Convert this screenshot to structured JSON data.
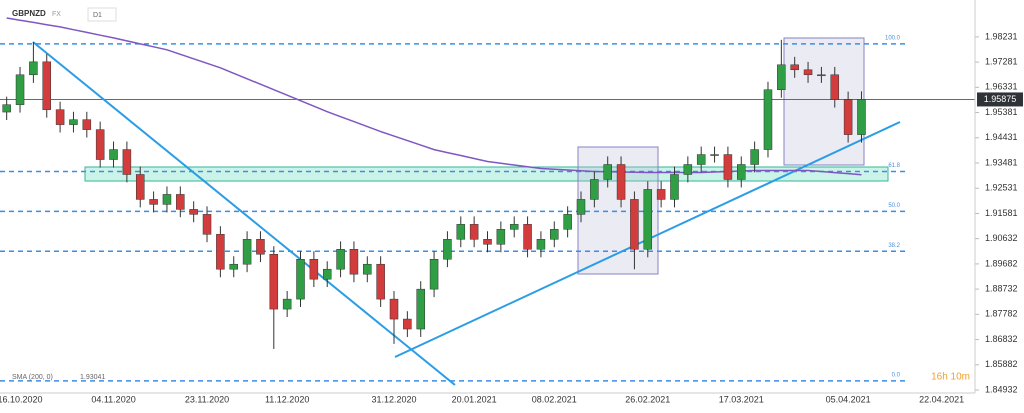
{
  "header": {
    "symbol": "GBPNZD",
    "market": "FX",
    "interval": "D1"
  },
  "chart_data": {
    "type": "candlestick",
    "categories": [
      null,
      "16.10.2020",
      null,
      null,
      null,
      null,
      null,
      null,
      "04.11.2020",
      null,
      null,
      null,
      null,
      null,
      null,
      "23.11.2020",
      null,
      null,
      null,
      null,
      null,
      "11.12.2020",
      null,
      null,
      null,
      null,
      null,
      null,
      null,
      "31.12.2020",
      null,
      null,
      null,
      null,
      null,
      "20.01.2021",
      null,
      null,
      null,
      null,
      null,
      "08.02.2021",
      null,
      null,
      null,
      null,
      null,
      null,
      "26.02.2021",
      null,
      null,
      null,
      null,
      null,
      null,
      "17.03.2021",
      null,
      null,
      null,
      null,
      null,
      null,
      null,
      "05.04.2021",
      null,
      null,
      null,
      null,
      null,
      null,
      "22.04.2021",
      null,
      null
    ],
    "open": [
      1.954,
      1.95678,
      1.96804,
      1.97292,
      1.9549,
      1.94927,
      1.95114,
      1.94739,
      1.93612,
      1.93988,
      1.93049,
      1.9211,
      1.91923,
      1.92298,
      1.91735,
      1.91547,
      1.90796,
      1.89482,
      1.8967,
      1.90608,
      1.90045,
      1.8798,
      1.88355,
      1.89857,
      1.89106,
      1.89482,
      1.90233,
      1.89294,
      1.8967,
      1.88355,
      1.87604,
      1.87229,
      1.88731,
      1.89857,
      1.90608,
      1.91172,
      1.90608,
      1.90421,
      1.90984,
      1.91172,
      1.90233,
      1.90608,
      1.90984,
      1.91547,
      1.9211,
      1.92861,
      1.93425,
      1.9211,
      1.90233,
      1.92486,
      1.9211,
      1.93049,
      1.93425,
      1.938,
      1.938,
      1.92861,
      1.93425,
      1.93988,
      1.96241,
      1.9718,
      1.96992,
      1.96804,
      1.96804,
      1.95865,
      1.94551,
      null,
      null,
      null,
      null,
      null,
      null,
      null,
      null
    ],
    "high": [
      1.9598,
      1.971,
      1.9804,
      1.9759,
      1.9579,
      1.9541,
      1.9541,
      1.9504,
      1.9429,
      1.9429,
      1.9335,
      1.9241,
      1.926,
      1.926,
      1.9204,
      1.9185,
      1.911,
      1.8997,
      1.9091,
      1.9091,
      1.9035,
      1.8866,
      1.9016,
      1.9016,
      1.8978,
      1.9053,
      1.9053,
      1.8997,
      1.8997,
      1.8866,
      1.879,
      1.8903,
      1.9016,
      1.9091,
      1.9147,
      1.9147,
      1.9091,
      1.9128,
      1.9147,
      1.9147,
      1.9091,
      1.9128,
      1.9185,
      1.9241,
      1.9316,
      1.9373,
      1.9373,
      1.9241,
      1.9279,
      1.9279,
      1.9335,
      1.9373,
      1.941,
      1.941,
      1.941,
      1.9373,
      1.9429,
      1.9654,
      1.9812,
      1.9748,
      1.9729,
      1.971,
      1.971,
      1.9617,
      1.9618,
      null,
      null,
      null,
      null,
      null,
      null,
      null,
      null
    ],
    "low": [
      1.951,
      1.9538,
      1.965,
      1.9519,
      1.9463,
      1.9463,
      1.9444,
      1.9331,
      1.9331,
      1.9275,
      1.9181,
      1.9162,
      1.9162,
      1.9144,
      1.9125,
      1.905,
      1.8918,
      1.8918,
      1.8937,
      1.8975,
      1.8648,
      1.8768,
      1.8806,
      1.8881,
      1.8881,
      1.8918,
      1.8899,
      1.8899,
      1.8806,
      1.8667,
      1.8693,
      1.8693,
      1.8843,
      1.8956,
      1.9031,
      1.9031,
      1.9012,
      1.9012,
      1.9068,
      1.8993,
      1.8993,
      1.9031,
      1.9068,
      1.9125,
      1.9181,
      1.9256,
      1.9181,
      1.8948,
      1.8993,
      1.9181,
      1.9181,
      1.9275,
      1.9313,
      1.935,
      1.9256,
      1.9256,
      1.9313,
      1.9369,
      1.9594,
      1.9669,
      1.965,
      1.965,
      1.9557,
      1.9425,
      1.9425,
      null,
      null,
      null,
      null,
      null,
      null,
      null,
      null
    ],
    "close": [
      1.95678,
      1.96804,
      1.97292,
      1.9549,
      1.94927,
      1.95114,
      1.94739,
      1.93612,
      1.93988,
      1.93049,
      1.9211,
      1.91923,
      1.92298,
      1.91735,
      1.91547,
      1.90796,
      1.89482,
      1.8967,
      1.90608,
      1.90045,
      1.8798,
      1.88355,
      1.89857,
      1.89106,
      1.89482,
      1.90233,
      1.89294,
      1.8967,
      1.88355,
      1.87604,
      1.87229,
      1.88731,
      1.89857,
      1.90608,
      1.91172,
      1.90608,
      1.90421,
      1.90984,
      1.91172,
      1.90233,
      1.90608,
      1.90984,
      1.91547,
      1.9211,
      1.92861,
      1.93425,
      1.9211,
      1.90233,
      1.92486,
      1.9211,
      1.93049,
      1.93425,
      1.938,
      1.938,
      1.92861,
      1.93425,
      1.93988,
      1.96241,
      1.9718,
      1.96992,
      1.96804,
      1.96804,
      1.95865,
      1.94551,
      1.95875,
      null,
      null,
      null,
      null,
      null,
      null,
      null,
      null
    ],
    "up_color": "#2f9e44",
    "down_color": "#d23c3c",
    "ylim": [
      1.8482,
      1.9962
    ],
    "yticks": [
      1.98231,
      1.97281,
      1.96331,
      1.95381,
      1.94431,
      1.93481,
      1.92531,
      1.91581,
      1.90632,
      1.89682,
      1.88732,
      1.87782,
      1.86832,
      1.85882,
      1.84932
    ],
    "last_price": 1.95875,
    "levels": [
      {
        "value": 1.97967,
        "label": "100.0"
      },
      {
        "value": 1.93162,
        "label": "61.8"
      },
      {
        "value": 1.9166,
        "label": "50.0"
      },
      {
        "value": 1.90158,
        "label": "38.2"
      },
      {
        "value": 1.85276,
        "label": "0.0"
      }
    ],
    "sma": {
      "name": "SMA (200, 0)",
      "color": "#7e57c2",
      "last_label": "1.93041",
      "values": [
        1.98944,
        1.9886,
        1.98776,
        1.98691,
        1.98607,
        1.98503,
        1.984,
        1.98296,
        1.98193,
        1.98081,
        1.97968,
        1.97856,
        1.97743,
        1.97574,
        1.97405,
        1.97236,
        1.97067,
        1.96861,
        1.96654,
        1.96448,
        1.96241,
        1.96035,
        1.95828,
        1.95622,
        1.95415,
        1.95227,
        1.9504,
        1.94852,
        1.94664,
        1.94495,
        1.94326,
        1.94157,
        1.93988,
        1.93875,
        1.93763,
        1.9365,
        1.93537,
        1.93471,
        1.93406,
        1.9334,
        1.93274,
        1.93246,
        1.93218,
        1.9319,
        1.93162,
        1.93153,
        1.93143,
        1.93134,
        1.93124,
        1.93124,
        1.93124,
        1.93124,
        1.93124,
        1.93143,
        1.93162,
        1.9318,
        1.93199,
        1.93199,
        1.93199,
        1.93199,
        1.93199,
        1.9316,
        1.9312,
        1.93081,
        1.93041
      ]
    },
    "timer": "16h 10m"
  }
}
